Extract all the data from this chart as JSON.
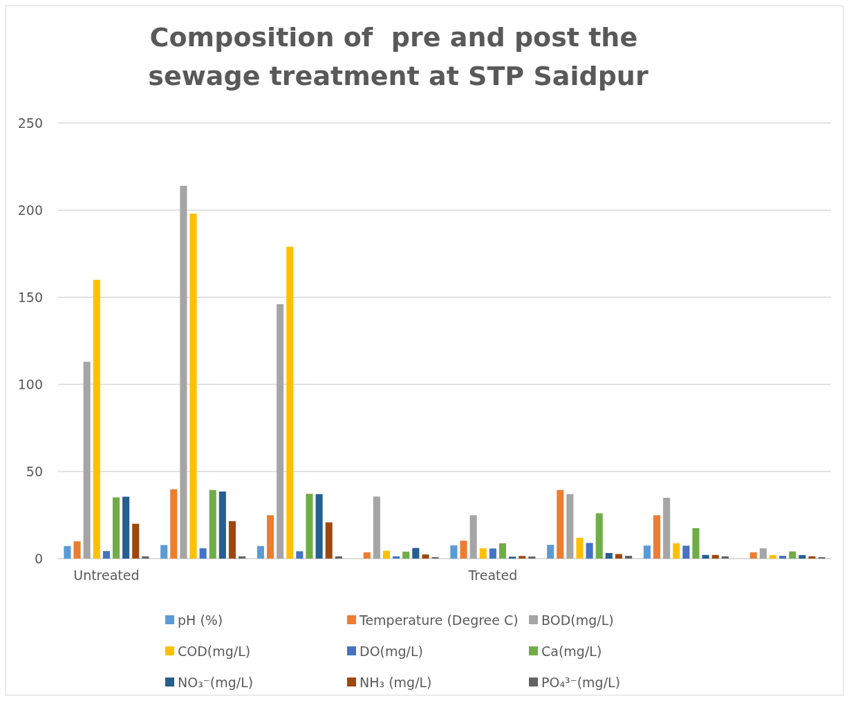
{
  "chart_data": {
    "type": "bar",
    "title": "Composition of  pre and post the sewage treatment at STP Saidpur",
    "categories": [
      "Untreated",
      null,
      null,
      null,
      "Treated",
      null,
      null,
      null
    ],
    "series": [
      {
        "name": "pH (%)",
        "color": "#5b9bd5",
        "values": [
          7.2,
          7.8,
          7.2,
          null,
          7.6,
          7.9,
          7.5,
          null
        ]
      },
      {
        "name": "Temperature (Degree C)",
        "color": "#ed7d31",
        "values": [
          9.9,
          39.8,
          24.9,
          3.6,
          10.3,
          39.4,
          24.9,
          3.6
        ]
      },
      {
        "name": "BOD(mg/L)",
        "color": "#a5a5a5",
        "values": [
          113,
          214,
          146,
          35.6,
          24.9,
          37,
          34.9,
          5.9
        ]
      },
      {
        "name": "COD(mg/L)",
        "color": "#ffc000",
        "values": [
          160,
          198,
          179,
          4.5,
          5.9,
          11.9,
          8.8,
          2
        ]
      },
      {
        "name": "DO(mg/L)",
        "color": "#4472c4",
        "values": [
          4.3,
          5.9,
          4.2,
          1.3,
          5.8,
          9,
          7.4,
          1.6
        ]
      },
      {
        "name": "Ca(mg/L)",
        "color": "#70ad47",
        "values": [
          35.1,
          39.4,
          37.2,
          4,
          8.8,
          26,
          17.5,
          4.1
        ]
      },
      {
        "name": "NO₃⁻(mg/L)",
        "color": "#255e91",
        "values": [
          35.5,
          38.5,
          37,
          6.1,
          1.1,
          3.2,
          2.1,
          2
        ]
      },
      {
        "name": "NH₃ (mg/L)",
        "color": "#9e480e",
        "values": [
          20,
          21.5,
          20.8,
          2.4,
          1.5,
          2.6,
          2.1,
          1.3
        ]
      },
      {
        "name": "PO₄³⁻(mg/L)",
        "color": "#636363",
        "values": [
          1.3,
          1.3,
          1.3,
          0.8,
          1.2,
          1.6,
          1.3,
          0.8
        ]
      }
    ],
    "ylim": [
      0,
      250
    ],
    "yticks": [
      0,
      50,
      100,
      150,
      200,
      250
    ],
    "grid": "y",
    "legend": "bottom"
  }
}
